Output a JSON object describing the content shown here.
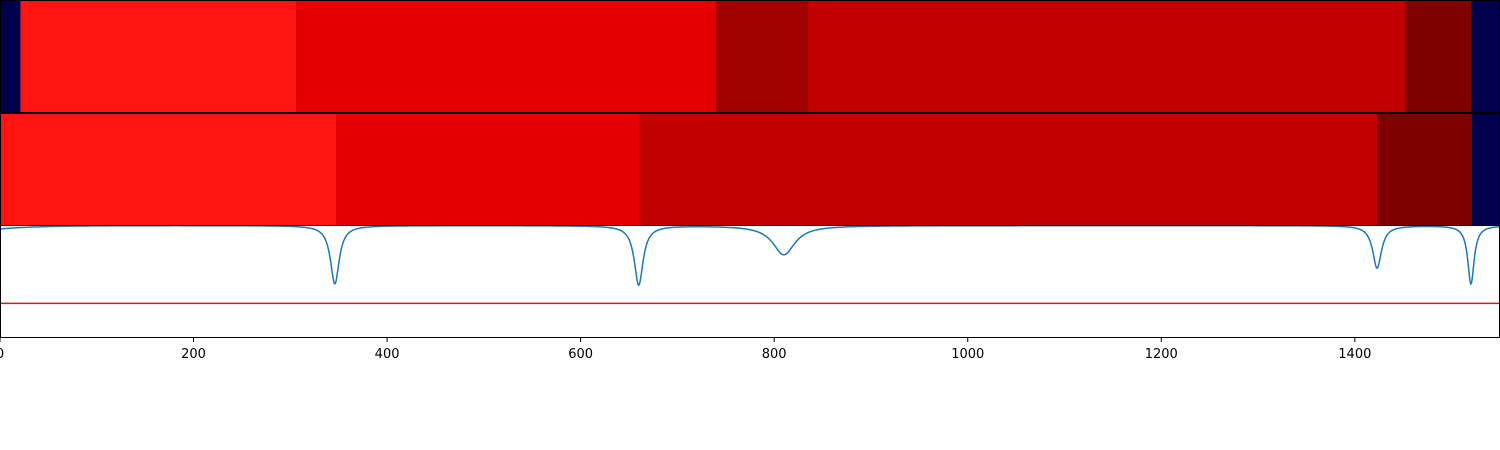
{
  "chart_data": {
    "type": "line",
    "xlim": [
      0,
      1550
    ],
    "x_ticks": [
      "0",
      "200",
      "400",
      "600",
      "800",
      "1000",
      "1200",
      "1400"
    ],
    "colors": {
      "line": "#1f77b4",
      "threshold": "#e8101a",
      "frame": "#000000",
      "background": "#ffffff"
    },
    "segment_bands": [
      {
        "segments": [
          {
            "start": 0,
            "end": 21,
            "color": "#00004d"
          },
          {
            "start": 21,
            "end": 306,
            "color": "#ff1414"
          },
          {
            "start": 306,
            "end": 740,
            "color": "#e40000"
          },
          {
            "start": 740,
            "end": 835,
            "color": "#a10000"
          },
          {
            "start": 835,
            "end": 1452,
            "color": "#c30000"
          },
          {
            "start": 1452,
            "end": 1520,
            "color": "#800000"
          },
          {
            "start": 1520,
            "end": 1550,
            "color": "#00004d"
          }
        ]
      },
      {
        "segments": [
          {
            "start": 0,
            "end": 347,
            "color": "#ff1414"
          },
          {
            "start": 347,
            "end": 661,
            "color": "#e40000"
          },
          {
            "start": 661,
            "end": 1423,
            "color": "#c30000"
          },
          {
            "start": 1423,
            "end": 1521,
            "color": "#800000"
          },
          {
            "start": 1521,
            "end": 1550,
            "color": "#00004d"
          }
        ]
      }
    ],
    "line_ylim": [
      0,
      1
    ],
    "threshold": 0.3,
    "line_baseline": 0.995,
    "line_start": 0.965,
    "dips": [
      {
        "x": 346,
        "depth": 0.52,
        "width": 5.5
      },
      {
        "x": 660,
        "depth": 0.53,
        "width": 5.5
      },
      {
        "x": 810,
        "depth": 0.26,
        "width": 14
      },
      {
        "x": 1423,
        "depth": 0.38,
        "width": 5.5
      },
      {
        "x": 1520,
        "depth": 0.52,
        "width": 4
      }
    ]
  }
}
